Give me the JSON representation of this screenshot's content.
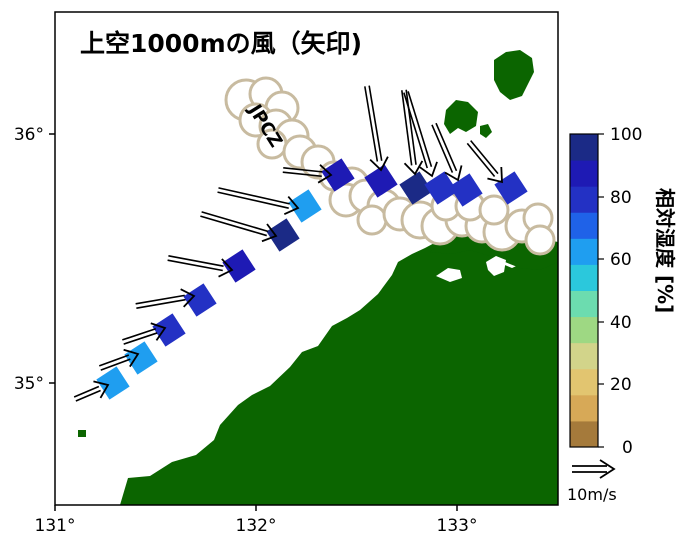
{
  "title": "上空1000mの風（矢印)",
  "annotation": "JPCZ",
  "x_axis": {
    "ticks": [
      "131°",
      "132°",
      "133°"
    ]
  },
  "y_axis": {
    "ticks": [
      "35°",
      "36°"
    ]
  },
  "colorbar": {
    "label": "相対湿度 [%]",
    "ticks": [
      "0",
      "20",
      "40",
      "60",
      "80",
      "100"
    ],
    "colors": [
      "#a57a3b",
      "#d7a957",
      "#e2c570",
      "#d2d48a",
      "#9ed883",
      "#6cdcaf",
      "#2bc8dc",
      "#1f9ef0",
      "#1f62e8",
      "#2331c4",
      "#1e1ab4",
      "#1b2a86"
    ]
  },
  "wind_legend": {
    "label": "10m/s"
  },
  "colors": {
    "land": "#0b6500",
    "cloud_outline": "#c8bba0"
  }
}
